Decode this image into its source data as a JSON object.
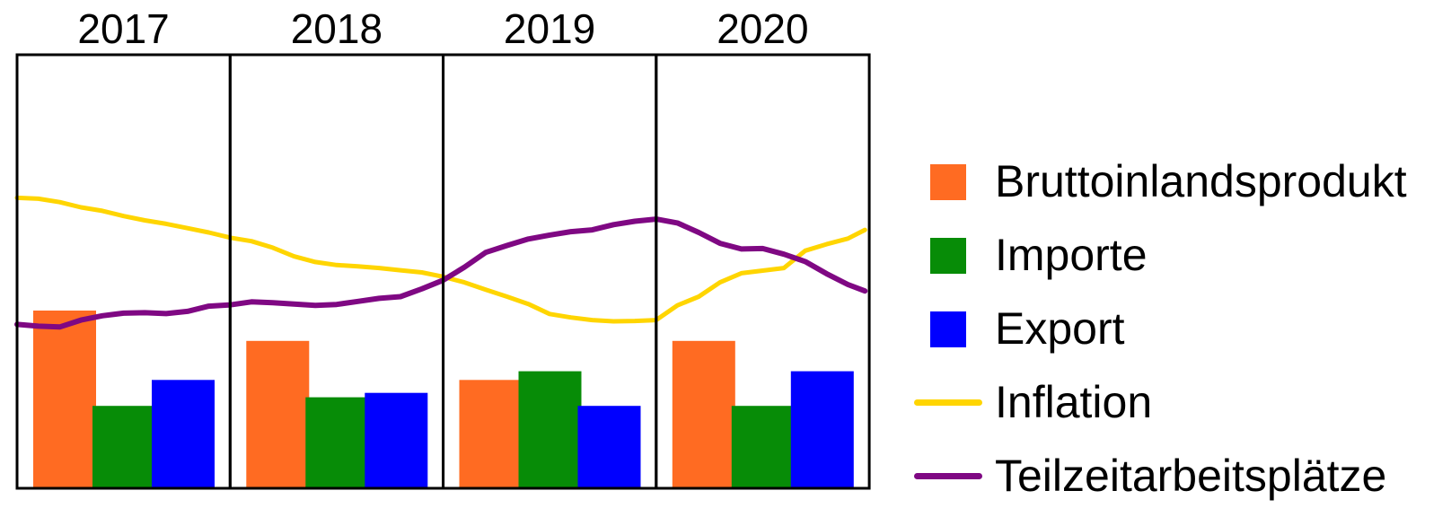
{
  "chart_data": {
    "type": "bar",
    "categories": [
      "2017",
      "2018",
      "2019",
      "2020"
    ],
    "ylim": [
      0,
      100
    ],
    "grid": false,
    "legend_position": "right",
    "series": [
      {
        "name": "Bruttoinlandsprodukt",
        "kind": "bar",
        "color": "#ff6b22",
        "values": [
          41,
          34,
          25,
          34
        ]
      },
      {
        "name": "Importe",
        "kind": "bar",
        "color": "#078c07",
        "values": [
          19,
          21,
          27,
          19
        ]
      },
      {
        "name": "Export",
        "kind": "bar",
        "color": "#0000ff",
        "values": [
          25,
          22,
          19,
          27
        ]
      },
      {
        "name": "Inflation",
        "kind": "line",
        "color": "#ffd500",
        "x": [
          2017.0,
          2017.1,
          2017.2,
          2017.3,
          2017.4,
          2017.5,
          2017.6,
          2017.7,
          2017.8,
          2017.9,
          2018.0,
          2018.1,
          2018.2,
          2018.3,
          2018.4,
          2018.5,
          2018.6,
          2018.7,
          2018.8,
          2018.9,
          2019.0,
          2019.1,
          2019.2,
          2019.3,
          2019.4,
          2019.5,
          2019.6,
          2019.7,
          2019.8,
          2019.9,
          2020.0,
          2020.1,
          2020.2,
          2020.3,
          2020.4,
          2020.5,
          2020.6,
          2020.7,
          2020.8,
          2020.9,
          2020.98
        ],
        "values": [
          67,
          66.8,
          66,
          64.8,
          64,
          62.8,
          61.8,
          61,
          60,
          59,
          57.8,
          57,
          55.5,
          53.5,
          52.2,
          51.5,
          51.2,
          50.8,
          50.3,
          49.8,
          48.8,
          47.5,
          45.8,
          44.2,
          42.5,
          40.2,
          39.4,
          38.8,
          38.5,
          38.6,
          38.8,
          42.2,
          44.2,
          47.5,
          49.6,
          50.2,
          50.8,
          54.8,
          56.3,
          57.6,
          59.6
        ]
      },
      {
        "name": "Teilzeitarbeitsplätze",
        "kind": "line",
        "color": "#7f0883",
        "x": [
          2017.0,
          2017.1,
          2017.2,
          2017.3,
          2017.4,
          2017.5,
          2017.6,
          2017.7,
          2017.8,
          2017.9,
          2018.0,
          2018.1,
          2018.2,
          2018.3,
          2018.4,
          2018.5,
          2018.6,
          2018.7,
          2018.8,
          2018.9,
          2019.0,
          2019.1,
          2019.2,
          2019.3,
          2019.4,
          2019.5,
          2019.6,
          2019.7,
          2019.8,
          2019.9,
          2020.0,
          2020.1,
          2020.2,
          2020.3,
          2020.4,
          2020.5,
          2020.6,
          2020.7,
          2020.8,
          2020.9,
          2020.98
        ],
        "values": [
          37.8,
          37.4,
          37.2,
          38.8,
          39.8,
          40.4,
          40.5,
          40.3,
          40.8,
          42,
          42.3,
          43,
          42.8,
          42.5,
          42.2,
          42.4,
          43.1,
          43.8,
          44.2,
          46,
          48,
          51,
          54.4,
          56,
          57.5,
          58.4,
          59.2,
          59.6,
          60.8,
          61.6,
          62.1,
          61.2,
          59,
          56.5,
          55.2,
          55.3,
          54,
          52.3,
          49.5,
          47,
          45.5
        ]
      }
    ]
  }
}
